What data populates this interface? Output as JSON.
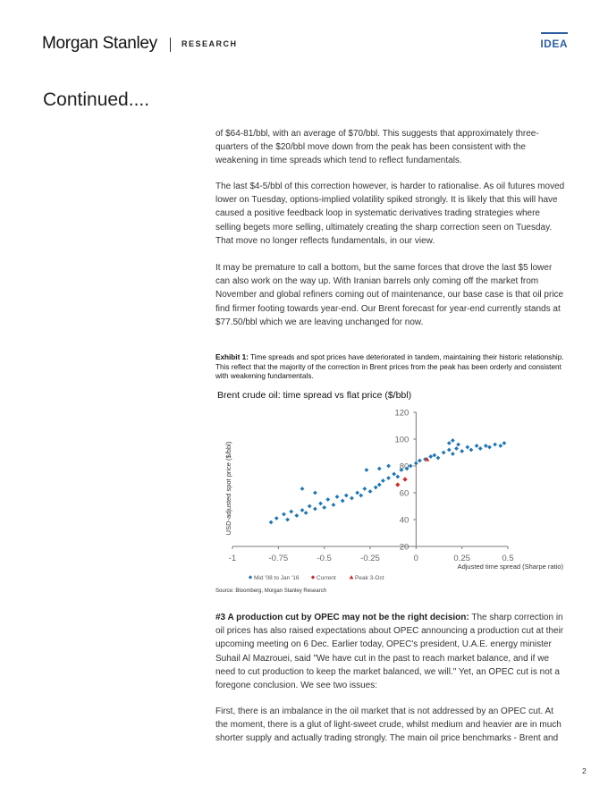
{
  "header": {
    "brand": "Morgan Stanley",
    "section": "RESEARCH",
    "tag": "IDEA"
  },
  "heading": "Continued....",
  "paragraphs": {
    "p1": "of $64-81/bbl, with an average of $70/bbl. This suggests that approximately three-quarters of the $20/bbl move down from the peak has been consistent with the weakening in time spreads which tend to reflect fundamentals.",
    "p2": "The last $4-5/bbl of this correction however, is harder to rationalise. As oil futures moved lower on Tuesday, options-implied volatility spiked strongly. It is likely that this will have caused a positive feedback loop in systematic derivatives trading strategies where selling begets more selling, ultimately creating the sharp correction seen on Tuesday. That move no longer reflects fundamentals, in our view.",
    "p3": "It may be premature to call a bottom, but the same forces that drove the last $5 lower can also work on the way up. With Iranian barrels only coming off the market from November and global refiners coming out of maintenance, our base case is that oil price find firmer footing towards year-end. Our Brent forecast for year-end currently stands at $77.50/bbl which we are leaving unchanged for now.",
    "p4_lead": "#3 A production cut by OPEC may not be the right decision:",
    "p4_rest": " The sharp correction in oil prices has also raised expectations about OPEC announcing a production cut at their upcoming meeting on 6 Dec. Earlier today, OPEC's president, U.A.E. energy minister Suhail Al Mazrouei, said \"We have cut in the past to reach market balance, and if we need to cut production to keep the market balanced, we will.\" Yet, an OPEC cut is not a foregone conclusion. We see two issues:",
    "p5": "First, there is an imbalance in the oil market that is not addressed by an OPEC cut. At the moment, there is a glut of light-sweet crude, whilst medium and heavier are in much shorter supply and actually trading strongly. The main oil price benchmarks - Brent and"
  },
  "exhibit": {
    "label": "Exhibit 1:",
    "caption": " Time spreads and spot prices have deteriorated in tandem, maintaining their historic relationship. This reflect that the majority of the correction in Brent prices from the peak has been orderly and consistent with weakening fundamentals.",
    "source": "Source: Bloomberg, Morgan Stanley Research"
  },
  "chart_data": {
    "type": "scatter",
    "title": "Brent crude oil: time spread vs flat price ($/bbl)",
    "xlabel": "Adjusted time spread (Sharpe ratio)",
    "ylabel": "USD-adjusted spot price ($/bbl)",
    "xlim": [
      -1,
      0.5
    ],
    "ylim": [
      20,
      120
    ],
    "x_ticks": [
      "-1",
      "-0.75",
      "-0.5",
      "-0.25",
      "0",
      "0.25",
      "0.5"
    ],
    "y_ticks": [
      "20",
      "40",
      "60",
      "80",
      "100",
      "120"
    ],
    "legend_position": "bottom",
    "series": [
      {
        "name": "Mid '08 to Jan '16",
        "marker": "diamond",
        "color": "#1f77b4",
        "points": [
          [
            -0.79,
            38
          ],
          [
            -0.76,
            41
          ],
          [
            -0.72,
            44
          ],
          [
            -0.7,
            40
          ],
          [
            -0.68,
            46
          ],
          [
            -0.65,
            43
          ],
          [
            -0.62,
            47
          ],
          [
            -0.6,
            45
          ],
          [
            -0.58,
            50
          ],
          [
            -0.55,
            48
          ],
          [
            -0.52,
            52
          ],
          [
            -0.5,
            49
          ],
          [
            -0.48,
            55
          ],
          [
            -0.45,
            51
          ],
          [
            -0.43,
            57
          ],
          [
            -0.4,
            54
          ],
          [
            -0.38,
            58
          ],
          [
            -0.35,
            56
          ],
          [
            -0.32,
            60
          ],
          [
            -0.3,
            58
          ],
          [
            -0.28,
            63
          ],
          [
            -0.25,
            61
          ],
          [
            -0.22,
            64
          ],
          [
            -0.2,
            66
          ],
          [
            -0.18,
            69
          ],
          [
            -0.15,
            71
          ],
          [
            -0.12,
            74
          ],
          [
            -0.1,
            72
          ],
          [
            -0.08,
            77
          ],
          [
            -0.05,
            78
          ],
          [
            -0.03,
            80
          ],
          [
            0.0,
            82
          ],
          [
            0.02,
            84
          ],
          [
            0.05,
            85
          ],
          [
            0.08,
            87
          ],
          [
            0.1,
            88
          ],
          [
            0.12,
            86
          ],
          [
            0.15,
            90
          ],
          [
            0.18,
            92
          ],
          [
            0.2,
            89
          ],
          [
            0.22,
            93
          ],
          [
            0.25,
            91
          ],
          [
            0.28,
            94
          ],
          [
            0.3,
            92
          ],
          [
            0.33,
            95
          ],
          [
            0.35,
            93
          ],
          [
            0.38,
            95
          ],
          [
            0.4,
            94
          ],
          [
            0.43,
            96
          ],
          [
            0.46,
            95
          ],
          [
            0.48,
            97
          ],
          [
            0.18,
            97
          ],
          [
            0.2,
            99
          ],
          [
            0.23,
            96
          ],
          [
            -0.27,
            77
          ],
          [
            -0.2,
            78
          ],
          [
            -0.15,
            80
          ],
          [
            -0.62,
            63
          ],
          [
            -0.55,
            60
          ]
        ]
      },
      {
        "name": "Current",
        "marker": "diamond",
        "color": "#d62728",
        "points": [
          [
            -0.1,
            66
          ],
          [
            -0.06,
            70
          ]
        ]
      },
      {
        "name": "Peak 3-Oct",
        "marker": "triangle",
        "color": "#d62728",
        "points": [
          [
            0.06,
            85
          ]
        ]
      }
    ]
  },
  "page_number": "2"
}
